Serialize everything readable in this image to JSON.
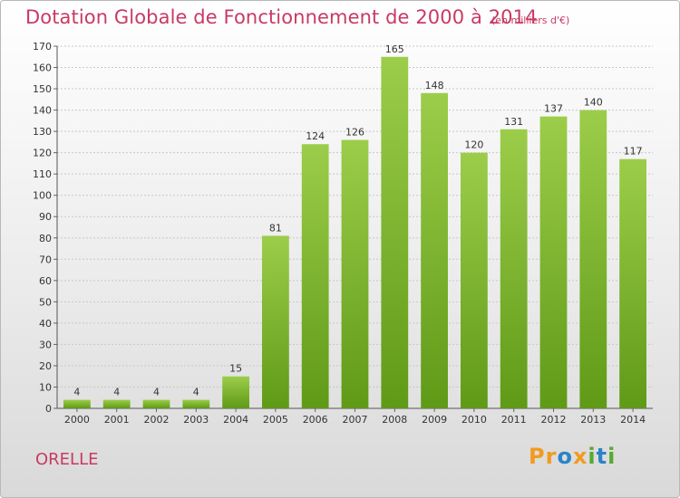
{
  "header": {
    "title": "Dotation Globale de Fonctionnement de 2000 à 2014",
    "unit": "(en milliers d'€)"
  },
  "footer": {
    "place": "ORELLE",
    "logo": "Proxiti"
  },
  "colors": {
    "bar_top": "#9ccd4a",
    "bar_bottom": "#5f9a17",
    "title": "#c83a64",
    "grid": "#c8c8c8"
  },
  "chart_data": {
    "type": "bar",
    "title": "Dotation Globale de Fonctionnement de 2000 à 2014",
    "subtitle": "(en milliers d'€)",
    "xlabel": "",
    "ylabel": "",
    "categories": [
      "2000",
      "2001",
      "2002",
      "2003",
      "2004",
      "2005",
      "2006",
      "2007",
      "2008",
      "2009",
      "2010",
      "2011",
      "2012",
      "2013",
      "2014"
    ],
    "values": [
      4,
      4,
      4,
      4,
      15,
      81,
      124,
      126,
      165,
      148,
      120,
      131,
      137,
      140,
      117
    ],
    "ylim": [
      0,
      170
    ],
    "yticks": [
      0,
      10,
      20,
      30,
      40,
      50,
      60,
      70,
      80,
      90,
      100,
      110,
      120,
      130,
      140,
      150,
      160,
      170
    ],
    "grid": true,
    "data_labels": true
  }
}
